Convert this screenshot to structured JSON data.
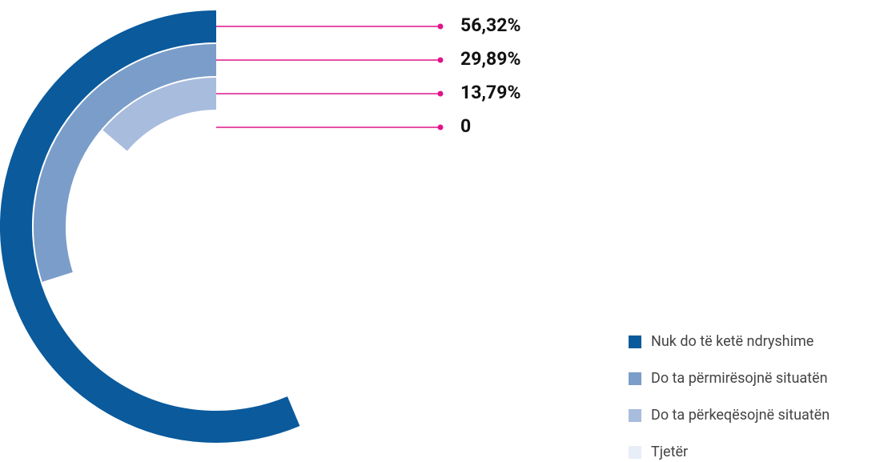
{
  "chart_data": {
    "type": "radial_bar",
    "categories": [
      "Nuk do të ketë ndryshime",
      "Do ta përmirësojnë situatën",
      "Do ta përkeqësojnë situatën",
      "Tjetër"
    ],
    "values": [
      56.32,
      29.89,
      13.79,
      0
    ],
    "value_labels": [
      "56,32%",
      "29,89%",
      "13,79%",
      "0"
    ],
    "colors": [
      "#0a5a9c",
      "#7b9dc9",
      "#a8bcdd",
      "#e8eef7"
    ],
    "leader_color": "#e0158a",
    "legend": "bottom-right"
  }
}
